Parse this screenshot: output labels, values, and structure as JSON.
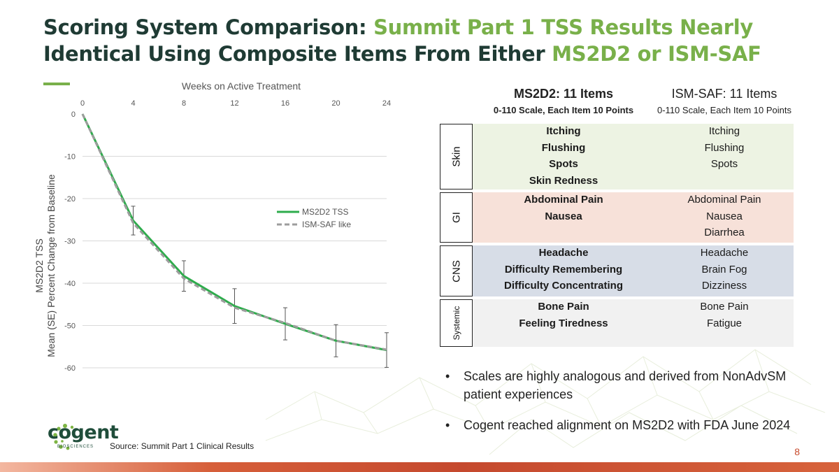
{
  "slide": {
    "title_dark_1": "Scoring System Comparison: ",
    "title_green_1": "Summit Part 1 TSS Results Nearly",
    "title_dark_2": "Identical Using Composite Items From Either ",
    "title_green_2": "MS2D2 or ISM-SAF",
    "source": "Source: Summit Part 1 Clinical Results",
    "page_number": "8",
    "logo_text": "cogent",
    "logo_sub": "BIOSCIENCES",
    "colors": {
      "dark": "#1f3b34",
      "green": "#79b04a",
      "orange": "#c84a2c"
    }
  },
  "chart_data": {
    "type": "line",
    "title": "Weeks on Active Treatment",
    "ylabel_line1": "MS2D2 TSS",
    "ylabel_line2": "Mean (SE) Percent Change from Baseline",
    "x": [
      0,
      4,
      8,
      12,
      16,
      20,
      24
    ],
    "x_ticks": [
      "0",
      "4",
      "8",
      "12",
      "16",
      "20",
      "24"
    ],
    "y_ticks": [
      "0",
      "-10",
      "-20",
      "-30",
      "-40",
      "-50",
      "-60"
    ],
    "xlim": [
      0,
      24
    ],
    "ylim": [
      -60,
      0
    ],
    "x_axis_position": "top",
    "grid": true,
    "legend_position": "right-middle",
    "series": [
      {
        "name": "MS2D2 TSS",
        "color": "#2eac4c",
        "dash": false,
        "values": [
          0,
          -25.2,
          -38.3,
          -45.4,
          -49.6,
          -53.6,
          -55.8
        ],
        "err": [
          0,
          3.4,
          3.6,
          4.1,
          3.8,
          3.8,
          4.1
        ]
      },
      {
        "name": "ISM-SAF like",
        "color": "#9d9d9d",
        "dash": true,
        "values": [
          0,
          -25.8,
          -38.9,
          -45.8,
          -49.4,
          -53.6,
          -55.7
        ]
      }
    ]
  },
  "scales": {
    "ms2d2_title": "MS2D2: 11 Items",
    "ms2d2_sub": "0-110 Scale, Each Item 10 Points",
    "ismsaf_title": "ISM-SAF: 11 Items",
    "ismsaf_sub": "0-110 Scale, Each Item 10 Points",
    "groups": [
      {
        "name": "Skin",
        "color": "#edf3e3",
        "ms2d2": [
          "Itching",
          "Flushing",
          "Spots",
          "Skin Redness"
        ],
        "ismsaf": [
          "Itching",
          "Flushing",
          "Spots"
        ]
      },
      {
        "name": "GI",
        "color": "#f7e1d9",
        "ms2d2": [
          "Abdominal Pain",
          "Nausea"
        ],
        "ismsaf": [
          "Abdominal Pain",
          "Nausea",
          "Diarrhea"
        ]
      },
      {
        "name": "CNS",
        "color": "#d7dde7",
        "ms2d2": [
          "Headache",
          "Difficulty Remembering",
          "Difficulty Concentrating"
        ],
        "ismsaf": [
          "Headache",
          "Brain Fog",
          "Dizziness"
        ]
      },
      {
        "name": "Systemic",
        "color": "#f1f1f1",
        "ms2d2": [
          "Bone Pain",
          "Feeling Tiredness"
        ],
        "ismsaf": [
          "Bone Pain",
          "Fatigue"
        ]
      }
    ]
  },
  "bullets": [
    "Scales are highly analogous and derived from NonAdvSM patient experiences",
    "Cogent reached alignment on MS2D2 with FDA June 2024"
  ]
}
